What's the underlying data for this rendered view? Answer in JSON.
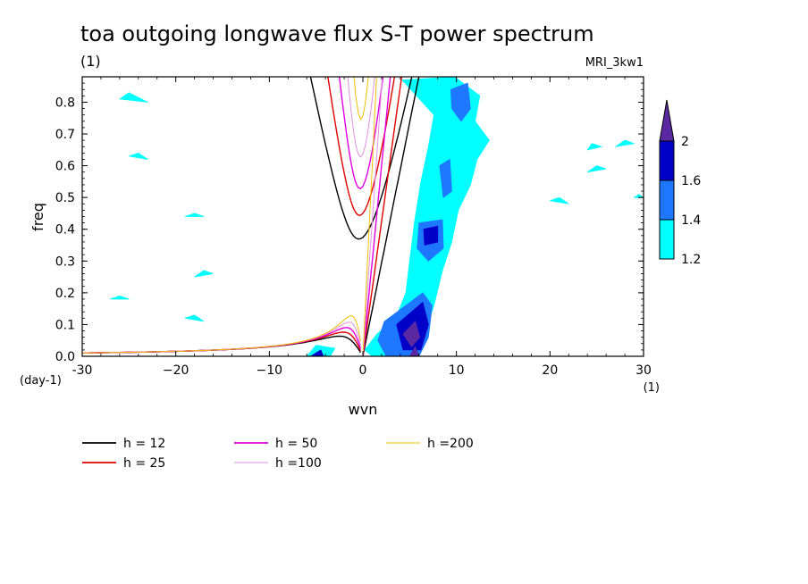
{
  "chart_data": {
    "type": "heatmap",
    "title": "toa outgoing longwave flux S-T power spectrum",
    "title_units": "(1)",
    "model_label": "MRI_3kw1",
    "xlabel": "wvn",
    "ylabel": "freq",
    "x_units": "(1)",
    "y_units": "(day-1)",
    "xlim": [
      -30,
      30
    ],
    "ylim": [
      0,
      0.88
    ],
    "x_ticks": [
      -30,
      -20,
      -10,
      0,
      10,
      20,
      30
    ],
    "x_tick_labels": [
      "-30",
      "−20",
      "−10",
      "0",
      "10",
      "20",
      "30"
    ],
    "y_ticks": [
      0,
      0.1,
      0.2,
      0.3,
      0.4,
      0.5,
      0.6,
      0.7,
      0.8
    ],
    "y_tick_labels": [
      "0.0",
      "0.1",
      "0.2",
      "0.3",
      "0.4",
      "0.5",
      "0.6",
      "0.7",
      "0.8"
    ],
    "colorbar": {
      "levels": [
        1.2,
        1.4,
        1.6,
        2
      ],
      "labels": [
        "1.2",
        "1.4",
        "1.6",
        "2"
      ],
      "colors": [
        "#00ffff",
        "#1e78ff",
        "#0000c8",
        "#5a28a0"
      ]
    },
    "power_regions": [
      {
        "level": 1.2,
        "path": [
          [
            4.2,
            0.87
          ],
          [
            9.8,
            0.88
          ],
          [
            12.5,
            0.82
          ],
          [
            12,
            0.74
          ],
          [
            13.5,
            0.68
          ],
          [
            12.2,
            0.62
          ],
          [
            11.5,
            0.54
          ],
          [
            10.2,
            0.46
          ],
          [
            9.5,
            0.36
          ],
          [
            8.5,
            0.27
          ],
          [
            7.6,
            0.16
          ],
          [
            6.6,
            0.07
          ],
          [
            5.6,
            0.02
          ],
          [
            4,
            0
          ],
          [
            1,
            0
          ],
          [
            0.2,
            0.02
          ],
          [
            1.5,
            0.07
          ],
          [
            3.5,
            0.12
          ],
          [
            4.6,
            0.2
          ],
          [
            5,
            0.3
          ],
          [
            5.5,
            0.42
          ],
          [
            6.2,
            0.55
          ],
          [
            7,
            0.66
          ],
          [
            7.6,
            0.76
          ]
        ]
      },
      {
        "level": 1.2,
        "path": [
          [
            -6,
            0
          ],
          [
            -3.5,
            0
          ],
          [
            -3,
            0.025
          ],
          [
            -5,
            0.035
          ]
        ]
      },
      {
        "level": 1.4,
        "path": [
          [
            9.4,
            0.84
          ],
          [
            11.2,
            0.86
          ],
          [
            11.5,
            0.78
          ],
          [
            10.5,
            0.74
          ],
          [
            9.5,
            0.78
          ]
        ]
      },
      {
        "level": 1.4,
        "path": [
          [
            8.2,
            0.6
          ],
          [
            9.3,
            0.62
          ],
          [
            9.5,
            0.52
          ],
          [
            8.6,
            0.5
          ]
        ]
      },
      {
        "level": 1.4,
        "path": [
          [
            6,
            0.42
          ],
          [
            8.5,
            0.43
          ],
          [
            8.6,
            0.34
          ],
          [
            7,
            0.3
          ],
          [
            5.8,
            0.34
          ]
        ]
      },
      {
        "level": 1.4,
        "path": [
          [
            2.3,
            0.11
          ],
          [
            6.4,
            0.2
          ],
          [
            7.4,
            0.16
          ],
          [
            7,
            0.06
          ],
          [
            6,
            0
          ],
          [
            2.5,
            0
          ],
          [
            1.6,
            0.05
          ]
        ]
      },
      {
        "level": 1.6,
        "path": [
          [
            3.6,
            0.1
          ],
          [
            6.4,
            0.17
          ],
          [
            7,
            0.1
          ],
          [
            6.2,
            0.02
          ],
          [
            4.3,
            0.02
          ]
        ]
      },
      {
        "level": 1.6,
        "path": [
          [
            6.5,
            0.4
          ],
          [
            8,
            0.41
          ],
          [
            8,
            0.36
          ],
          [
            6.6,
            0.35
          ]
        ]
      },
      {
        "level": 1.6,
        "path": [
          [
            -5.6,
            0
          ],
          [
            -4.2,
            0
          ],
          [
            -4.5,
            0.02
          ]
        ]
      },
      {
        "level": 2,
        "path": [
          [
            4.3,
            0.07
          ],
          [
            5.6,
            0.11
          ],
          [
            6.1,
            0.06
          ],
          [
            5.2,
            0.03
          ]
        ]
      },
      {
        "level": 2,
        "path": [
          [
            5,
            0
          ],
          [
            6,
            0
          ],
          [
            5.6,
            0.03
          ]
        ]
      },
      {
        "level": 1.2,
        "path": [
          [
            -16,
            0.26
          ],
          [
            -18,
            0.25
          ],
          [
            -17,
            0.27
          ]
        ]
      },
      {
        "level": 1.2,
        "path": [
          [
            -26,
            0.81
          ],
          [
            -23,
            0.8
          ],
          [
            -25,
            0.83
          ]
        ]
      },
      {
        "level": 1.2,
        "path": [
          [
            24,
            0.58
          ],
          [
            26,
            0.59
          ],
          [
            25,
            0.6
          ]
        ]
      },
      {
        "level": 1.2,
        "path": [
          [
            20,
            0.49
          ],
          [
            22,
            0.48
          ],
          [
            21,
            0.5
          ]
        ]
      },
      {
        "level": 1.2,
        "path": [
          [
            -17,
            0.11
          ],
          [
            -19,
            0.12
          ],
          [
            -18,
            0.13
          ]
        ]
      },
      {
        "level": 1.2,
        "path": [
          [
            24,
            0.65
          ],
          [
            25.5,
            0.66
          ],
          [
            24.5,
            0.67
          ]
        ]
      },
      {
        "level": 1.2,
        "path": [
          [
            27,
            0.66
          ],
          [
            29,
            0.67
          ],
          [
            28,
            0.68
          ]
        ]
      },
      {
        "level": 1.2,
        "path": [
          [
            29,
            0.5
          ],
          [
            30,
            0.5
          ],
          [
            29.5,
            0.51
          ]
        ]
      },
      {
        "level": 1.2,
        "path": [
          [
            -23,
            0.62
          ],
          [
            -25,
            0.63
          ],
          [
            -24,
            0.64
          ]
        ]
      },
      {
        "level": 1.2,
        "path": [
          [
            -19,
            0.44
          ],
          [
            -17,
            0.44
          ],
          [
            -18,
            0.45
          ]
        ]
      },
      {
        "level": 1.2,
        "path": [
          [
            -25,
            0.18
          ],
          [
            -27,
            0.18
          ],
          [
            -26,
            0.19
          ]
        ]
      }
    ],
    "series": [
      {
        "name": "h = 12",
        "h": 12,
        "color": "#000000",
        "style": "thick"
      },
      {
        "name": "h = 25",
        "h": 25,
        "color": "#e00000",
        "style": "thick"
      },
      {
        "name": "h = 50",
        "h": 50,
        "color": "#e000e0",
        "style": "thick"
      },
      {
        "name": "h =100",
        "h": 100,
        "color": "#e090e0",
        "style": "thin"
      },
      {
        "name": "h =200",
        "h": 200,
        "color": "#f0c000",
        "style": "thin"
      }
    ]
  }
}
